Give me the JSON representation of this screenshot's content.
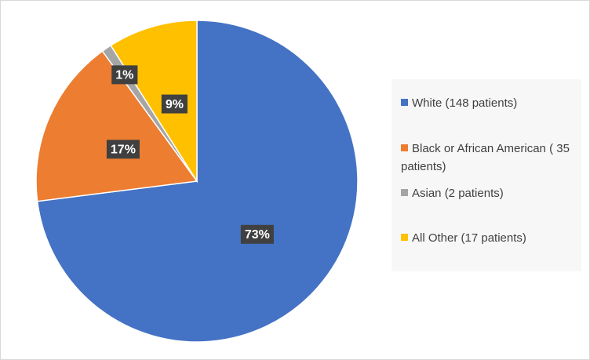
{
  "chart_data": {
    "type": "pie",
    "categories": [
      "White (148 patients)",
      "Black or African American ( 35 patients)",
      "Asian (2 patients)",
      "All Other (17 patients)"
    ],
    "values": [
      73,
      17,
      1,
      9
    ],
    "value_labels": [
      "73%",
      "17%",
      "1%",
      "9%"
    ],
    "colors": [
      "#4472c4",
      "#ed7d31",
      "#a5a5a5",
      "#ffc000"
    ],
    "legend": "right"
  }
}
